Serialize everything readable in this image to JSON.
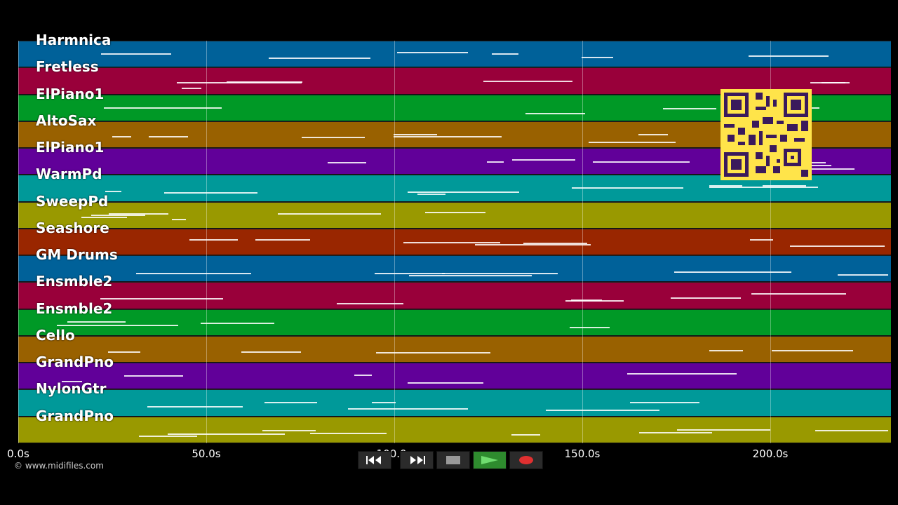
{
  "tracks": [
    {
      "name": "Harmnica",
      "color": "#006199"
    },
    {
      "name": "Fretless",
      "color": "#99003a"
    },
    {
      "name": "ElPiano1",
      "color": "#009926"
    },
    {
      "name": "AltoSax",
      "color": "#996100"
    },
    {
      "name": "ElPiano1",
      "color": "#610099"
    },
    {
      "name": "WarmPd",
      "color": "#009999"
    },
    {
      "name": "SweepPd",
      "color": "#999900"
    },
    {
      "name": "Seashore",
      "color": "#992600"
    },
    {
      "name": "GM Drums",
      "color": "#006199"
    },
    {
      "name": "Ensmble2",
      "color": "#99003a"
    },
    {
      "name": "Ensmble2",
      "color": "#009926"
    },
    {
      "name": "Cello",
      "color": "#996100"
    },
    {
      "name": "GrandPno",
      "color": "#610099"
    },
    {
      "name": "NylonGtr",
      "color": "#009999"
    },
    {
      "name": "GrandPno",
      "color": "#999900"
    }
  ],
  "time_axis": [
    "0.0s",
    "50.0s",
    "100.0s",
    "150.0s",
    "200.0s"
  ],
  "copyright": "© www.midifiles.com",
  "transport": {
    "rewind": "rewind-icon",
    "fast_forward": "fast-forward-icon",
    "stop": "stop-icon",
    "play": "play-icon",
    "record": "record-icon"
  },
  "colors": {
    "play_active": "#2e8b2e",
    "record": "#e03030"
  }
}
